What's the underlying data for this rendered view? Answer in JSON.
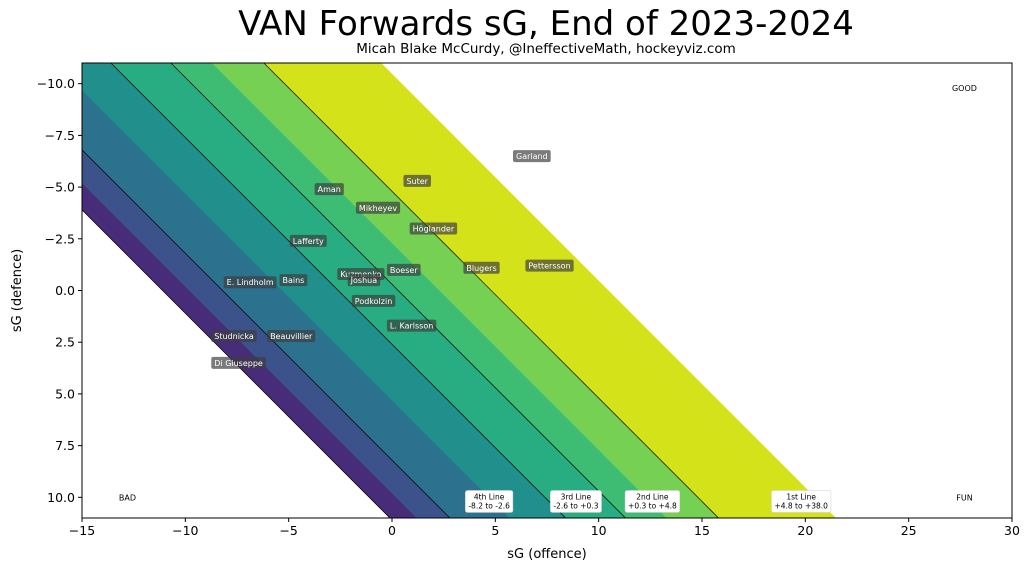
{
  "title": "VAN Forwards sG, End of 2023-2024",
  "subtitle": "Micah Blake McCurdy, @IneffectiveMath, hockeyviz.com",
  "chart_data": {
    "type": "scatter",
    "title": "VAN Forwards sG, End of 2023-2024",
    "xlabel": "sG (offence)",
    "ylabel": "sG (defence)",
    "xlim": [
      -15,
      30
    ],
    "ylim": [
      11,
      -11
    ],
    "y_inverted": true,
    "xticks": [
      -15,
      -10,
      -5,
      0,
      5,
      10,
      15,
      20,
      25,
      30
    ],
    "yticks": [
      -10,
      -7.5,
      -5,
      -2.5,
      0,
      2.5,
      5,
      7.5,
      10
    ],
    "xtick_labels": [
      "−15",
      "−10",
      "−5",
      "0",
      "5",
      "10",
      "15",
      "20",
      "25",
      "30"
    ],
    "ytick_labels": [
      "−10.0",
      "−7.5",
      "−5.0",
      "−2.5",
      "0.0",
      "2.5",
      "5.0",
      "7.5",
      "10.0"
    ],
    "grid": false,
    "bands": [
      {
        "from": -100,
        "to": -11.1,
        "color": "#ffffff"
      },
      {
        "from": -11.1,
        "to": -9.8,
        "color": "#472c7a"
      },
      {
        "from": -9.8,
        "to": -8.2,
        "color": "#3b528b"
      },
      {
        "from": -8.2,
        "to": -5.3,
        "color": "#2c728e"
      },
      {
        "from": -5.3,
        "to": -2.6,
        "color": "#21908c"
      },
      {
        "from": -2.6,
        "to": 0.3,
        "color": "#27ad81"
      },
      {
        "from": 0.3,
        "to": 2.3,
        "color": "#3dbc74"
      },
      {
        "from": 2.3,
        "to": 4.8,
        "color": "#75d054"
      },
      {
        "from": 4.8,
        "to": 10.5,
        "color": "#d4e21a"
      },
      {
        "from": 10.5,
        "to": 100,
        "color": "#ffffff"
      }
    ],
    "boundaries": [
      -8.2,
      -2.6,
      0.3,
      4.8
    ],
    "outline_boundary": -11.1,
    "players": [
      {
        "name": "Garland",
        "x": 6.0,
        "y": -6.5
      },
      {
        "name": "Suter",
        "x": 0.7,
        "y": -5.3
      },
      {
        "name": "Aman",
        "x": -3.6,
        "y": -4.9
      },
      {
        "name": "Mikheyev",
        "x": -1.6,
        "y": -4.0
      },
      {
        "name": "Höglander",
        "x": 1.0,
        "y": -3.0
      },
      {
        "name": "Lafferty",
        "x": -4.8,
        "y": -2.4
      },
      {
        "name": "Pettersson",
        "x": 6.6,
        "y": -1.2
      },
      {
        "name": "Blugers",
        "x": 3.6,
        "y": -1.1
      },
      {
        "name": "Boeser",
        "x": -0.1,
        "y": -1.0
      },
      {
        "name": "Kuzmenko",
        "x": -2.5,
        "y": -0.8
      },
      {
        "name": "Joshua",
        "x": -2.0,
        "y": -0.5
      },
      {
        "name": "Bains",
        "x": -5.3,
        "y": -0.5
      },
      {
        "name": "E. Lindholm",
        "x": -8.0,
        "y": -0.4
      },
      {
        "name": "Podkolzin",
        "x": -1.8,
        "y": 0.5
      },
      {
        "name": "L. Karlsson",
        "x": -0.1,
        "y": 1.7
      },
      {
        "name": "Studnicka",
        "x": -8.6,
        "y": 2.2
      },
      {
        "name": "Beauvillier",
        "x": -5.9,
        "y": 2.2
      },
      {
        "name": "Di Giuseppe",
        "x": -8.6,
        "y": 3.5
      }
    ],
    "line_labels": [
      {
        "line1": "4th Line",
        "line2": "-8.2 to -2.6",
        "x": 4.7,
        "y": 10.2
      },
      {
        "line1": "3rd Line",
        "line2": "-2.6 to +0.3",
        "x": 8.9,
        "y": 10.2
      },
      {
        "line1": "2nd Line",
        "line2": "+0.3 to +4.8",
        "x": 12.6,
        "y": 10.2
      },
      {
        "line1": "1st Line",
        "line2": "+4.8 to +38.0",
        "x": 19.8,
        "y": 10.2
      }
    ],
    "corner_labels": [
      {
        "text": "GOOD",
        "x": 27.7,
        "y": -9.8
      },
      {
        "text": "BAD",
        "x": -12.8,
        "y": 10.0
      },
      {
        "text": "FUN",
        "x": 27.7,
        "y": 10.0
      }
    ]
  }
}
